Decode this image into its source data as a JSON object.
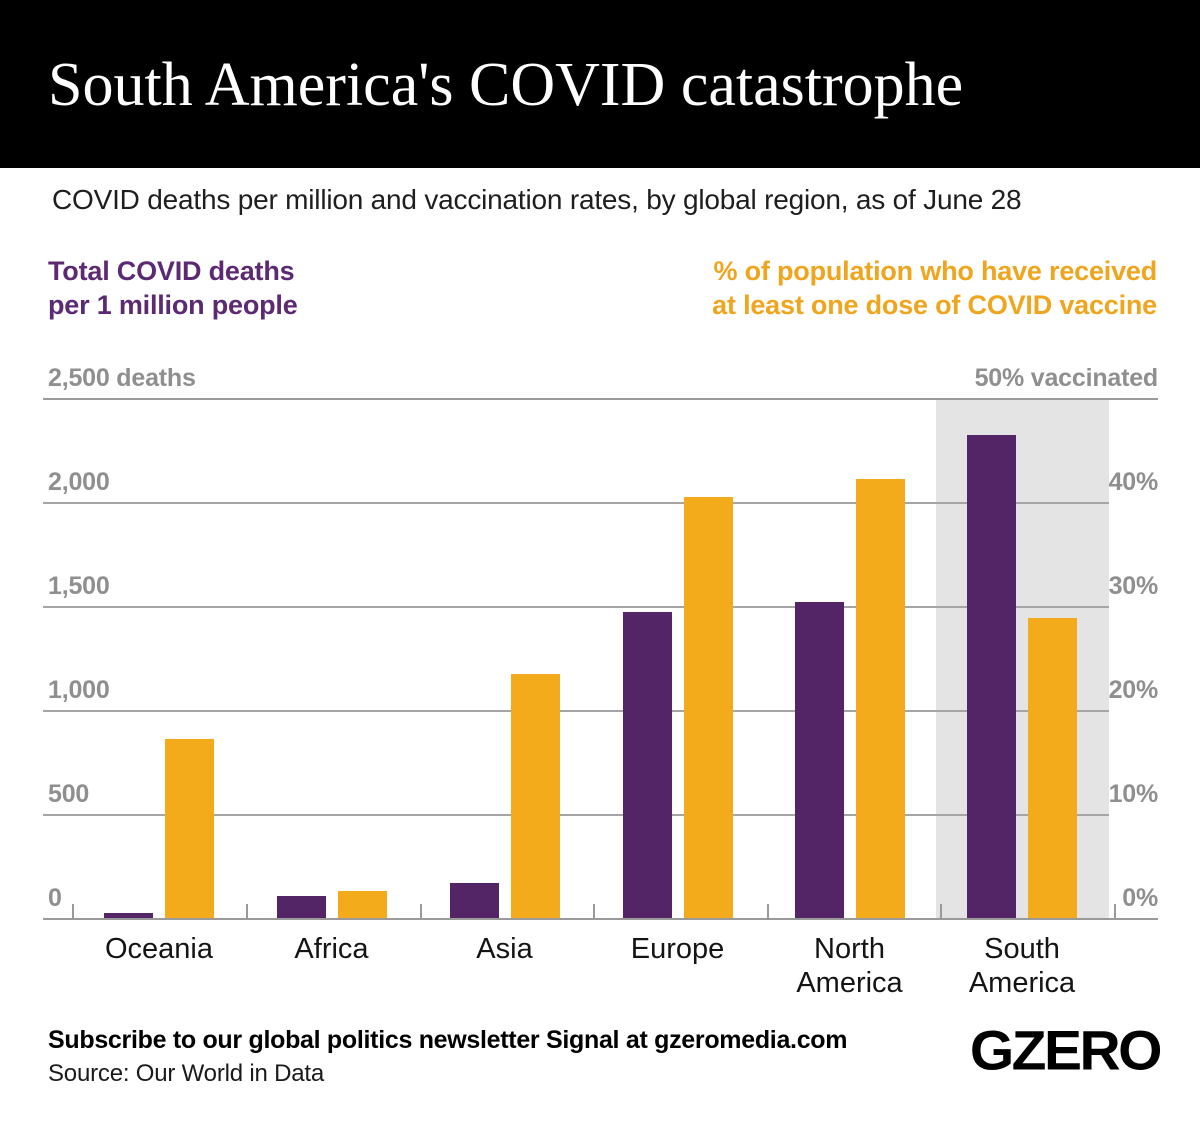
{
  "header": {
    "title": "South America's COVID catastrophe"
  },
  "subtitle": "COVID deaths per million and vaccination rates, by global region, as of June 28",
  "legend": {
    "deaths_line1": "Total COVID deaths",
    "deaths_line2": "per 1 million people",
    "vaccine_line1": "% of population who have received",
    "vaccine_line2": "at least one dose of COVID vaccine"
  },
  "footer": {
    "subscribe": "Subscribe to our global politics newsletter Signal at gzeromedia.com",
    "source": "Source: Our World in Data",
    "logo": "GZERO"
  },
  "theme": {
    "deaths_bar_color": "#532466",
    "vaccine_bar_color": "#f4ab1b",
    "deaths_text_color": "#5c2a72",
    "vaccine_text_color": "#efa51d",
    "highlight_band_color": "#e4e4e4",
    "gridline_color": "#a5a5a5",
    "axis_text_color": "#8f8f8f"
  },
  "chart_data": {
    "type": "bar",
    "categories": [
      "Oceania",
      "Africa",
      "Asia",
      "Europe",
      "North America",
      "South America"
    ],
    "series": [
      {
        "name": "Total COVID deaths per 1 million people",
        "axis": "left",
        "values": [
          25,
          105,
          170,
          1470,
          1520,
          2320
        ]
      },
      {
        "name": "% of population who have received at least one dose of COVID vaccine",
        "axis": "right",
        "values": [
          17.2,
          2.6,
          23.5,
          40.5,
          42.2,
          28.8
        ]
      }
    ],
    "left_axis": {
      "max": 2500,
      "tick_labels": [
        "2,500 deaths",
        "2,000",
        "1,500",
        "1,000",
        "500",
        "0"
      ]
    },
    "right_axis": {
      "max": 50,
      "tick_labels": [
        "50% vaccinated",
        "40%",
        "30%",
        "20%",
        "10%",
        "0%"
      ]
    },
    "grid": true,
    "legend_position": "top",
    "highlighted_category": "South America"
  }
}
